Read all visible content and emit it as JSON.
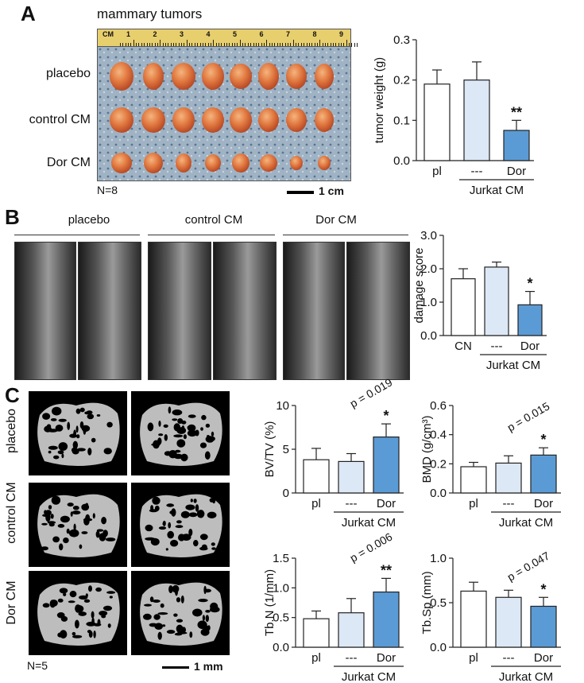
{
  "panelA": {
    "letter": "A",
    "title": "mammary tumors",
    "rows": [
      "placebo",
      "control CM",
      "Dor CM"
    ],
    "n_label": "N=8",
    "scale_label": "1 cm",
    "ruler_unit": "CM",
    "ruler_ticks": [
      "1",
      "2",
      "3",
      "4",
      "5",
      "6",
      "7",
      "8",
      "9"
    ]
  },
  "panelB": {
    "letter": "B",
    "groups": [
      "placebo",
      "control CM",
      "Dor CM"
    ]
  },
  "panelC": {
    "letter": "C",
    "rows": [
      "placebo",
      "control CM",
      "Dor CM"
    ],
    "n_label": "N=5",
    "scale_label": "1 mm"
  },
  "colors": {
    "placebo_bar": "#ffffff",
    "control_bar": "#dde8f6",
    "dor_bar": "#5b9bd5",
    "axis": "#222222"
  },
  "chart_data": [
    {
      "id": "tumor-weight",
      "type": "bar",
      "ylabel": "tumor weight (g)",
      "categories": [
        "pl",
        "---",
        "Dor"
      ],
      "group_label": "Jurkat CM",
      "values": [
        0.19,
        0.2,
        0.075
      ],
      "errors": [
        0.035,
        0.045,
        0.025
      ],
      "ylim": [
        0,
        0.3
      ],
      "yticks": [
        "0.0",
        "0.1",
        "0.2",
        "0.3"
      ],
      "annotations": [
        "",
        "",
        "**"
      ],
      "pvalue": ""
    },
    {
      "id": "damage-score",
      "type": "bar",
      "ylabel": "damage score",
      "categories": [
        "CN",
        "---",
        "Dor"
      ],
      "group_label": "Jurkat CM",
      "values": [
        1.7,
        2.05,
        0.92
      ],
      "errors": [
        0.3,
        0.15,
        0.4
      ],
      "ylim": [
        0,
        3
      ],
      "yticks": [
        "0.0",
        "1.0",
        "2.0",
        "3.0"
      ],
      "annotations": [
        "",
        "",
        "*"
      ],
      "pvalue": ""
    },
    {
      "id": "bv-tv",
      "type": "bar",
      "ylabel": "BV/TV (%)",
      "categories": [
        "pl",
        "---",
        "Dor"
      ],
      "group_label": "Jurkat CM",
      "values": [
        3.8,
        3.6,
        6.4
      ],
      "errors": [
        1.3,
        0.9,
        1.5
      ],
      "ylim": [
        0,
        10
      ],
      "yticks": [
        "0",
        "5",
        "10"
      ],
      "annotations": [
        "",
        "",
        "*"
      ],
      "pvalue": "p = 0.019"
    },
    {
      "id": "bmd",
      "type": "bar",
      "ylabel": "BMD (g/cm³)",
      "categories": [
        "pl",
        "---",
        "Dor"
      ],
      "group_label": "Jurkat CM",
      "values": [
        0.18,
        0.205,
        0.26
      ],
      "errors": [
        0.03,
        0.05,
        0.05
      ],
      "ylim": [
        0,
        0.6
      ],
      "yticks": [
        "0.0",
        "0.2",
        "0.4",
        "0.6"
      ],
      "annotations": [
        "",
        "",
        "*"
      ],
      "pvalue": "p = 0.015"
    },
    {
      "id": "tb-n",
      "type": "bar",
      "ylabel": "Tb.N (1/mm)",
      "categories": [
        "pl",
        "---",
        "Dor"
      ],
      "group_label": "Jurkat CM",
      "values": [
        0.48,
        0.58,
        0.93
      ],
      "errors": [
        0.13,
        0.24,
        0.23
      ],
      "ylim": [
        0,
        1.5
      ],
      "yticks": [
        "0.0",
        "0.5",
        "1.0",
        "1.5"
      ],
      "annotations": [
        "",
        "",
        "**"
      ],
      "pvalue": "p = 0.006"
    },
    {
      "id": "tb-sp",
      "type": "bar",
      "ylabel": "Tb.Sp (mm)",
      "categories": [
        "pl",
        "---",
        "Dor"
      ],
      "group_label": "Jurkat CM",
      "values": [
        0.63,
        0.56,
        0.46
      ],
      "errors": [
        0.1,
        0.08,
        0.1
      ],
      "ylim": [
        0,
        1
      ],
      "yticks": [
        "0.0",
        "0.5",
        "1.0"
      ],
      "annotations": [
        "",
        "",
        "*"
      ],
      "pvalue": "p = 0.047"
    }
  ]
}
